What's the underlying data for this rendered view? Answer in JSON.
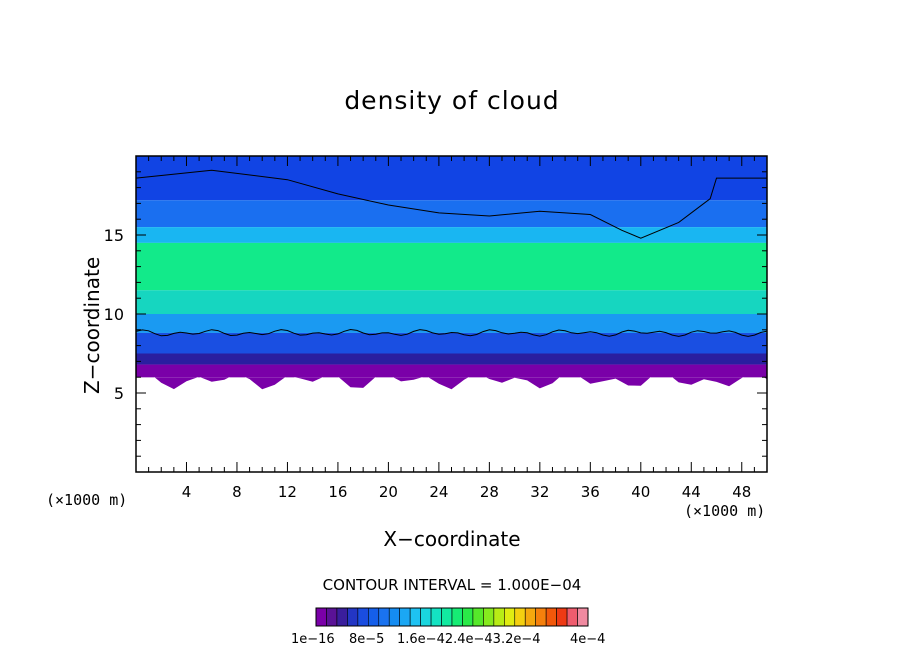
{
  "chart_data": {
    "type": "heatmap",
    "title": "density of cloud",
    "xlabel": "X−coordinate",
    "ylabel": "Z−coordinate",
    "x_unit_label_left": "(×1000 m)",
    "x_unit_label_right": "(×1000 m)",
    "x_range": [
      0,
      50
    ],
    "y_range": [
      0,
      20
    ],
    "x_ticks": [
      "4",
      "8",
      "12",
      "16",
      "20",
      "24",
      "28",
      "32",
      "36",
      "40",
      "44",
      "48"
    ],
    "y_ticks": [
      "5",
      "10",
      "15"
    ],
    "contour_interval_text": "CONTOUR INTERVAL = 1.000E−04",
    "colorbar_labels": [
      "1e−16",
      "8e−5",
      "1.6e−42.4e−43.2e−4",
      "4e−4"
    ],
    "colorbar_colors": [
      "#7a00a8",
      "#5a1296",
      "#3a1e9c",
      "#2336c4",
      "#1a4de0",
      "#155fea",
      "#1a73f0",
      "#158cf2",
      "#1ba7f4",
      "#1ec2f2",
      "#1ad6de",
      "#14e3c2",
      "#12eaa0",
      "#16ec74",
      "#2aea48",
      "#56e82a",
      "#86ea1e",
      "#b8ec16",
      "#e0ec12",
      "#f4d010",
      "#f5a80e",
      "#f5800c",
      "#f2580a",
      "#ee3a14",
      "#ef5c6e",
      "#f08aa0"
    ],
    "cloud_bands": [
      {
        "z_bottom": 17.2,
        "z_top": 20,
        "level": "low-blue",
        "color": "#1144e4"
      },
      {
        "z_bottom": 15.5,
        "z_top": 17.2,
        "level": "blue",
        "color": "#1a6ff0"
      },
      {
        "z_bottom": 14.5,
        "z_top": 15.5,
        "level": "cyan",
        "color": "#19b6f2"
      },
      {
        "z_bottom": 11.5,
        "z_top": 14.5,
        "level": "green",
        "color": "#12ea8a"
      },
      {
        "z_bottom": 10,
        "z_top": 11.5,
        "level": "teal",
        "color": "#16d6c0"
      },
      {
        "z_bottom": 8.8,
        "z_top": 10,
        "level": "light-blue",
        "color": "#1a9af2"
      },
      {
        "z_bottom": 7.5,
        "z_top": 8.8,
        "level": "blue",
        "color": "#1a4fe2"
      },
      {
        "z_bottom": 6.8,
        "z_top": 7.5,
        "level": "dark-blue",
        "color": "#2a1ea0"
      },
      {
        "z_bottom": 6.0,
        "z_top": 6.8,
        "level": "purple",
        "color": "#7a00a8"
      }
    ],
    "upper_contour_line": [
      [
        0,
        18.6
      ],
      [
        6,
        19.1
      ],
      [
        12,
        18.5
      ],
      [
        16,
        17.6
      ],
      [
        20,
        16.9
      ],
      [
        24,
        16.4
      ],
      [
        28,
        16.2
      ],
      [
        32,
        16.5
      ],
      [
        36,
        16.3
      ],
      [
        38.5,
        15.3
      ],
      [
        40,
        14.8
      ],
      [
        43,
        15.8
      ],
      [
        45.5,
        17.3
      ],
      [
        46,
        18.6
      ],
      [
        50,
        18.6
      ]
    ],
    "lower_contour_line_z": 8.8,
    "grid": false,
    "legend": "bottom"
  }
}
